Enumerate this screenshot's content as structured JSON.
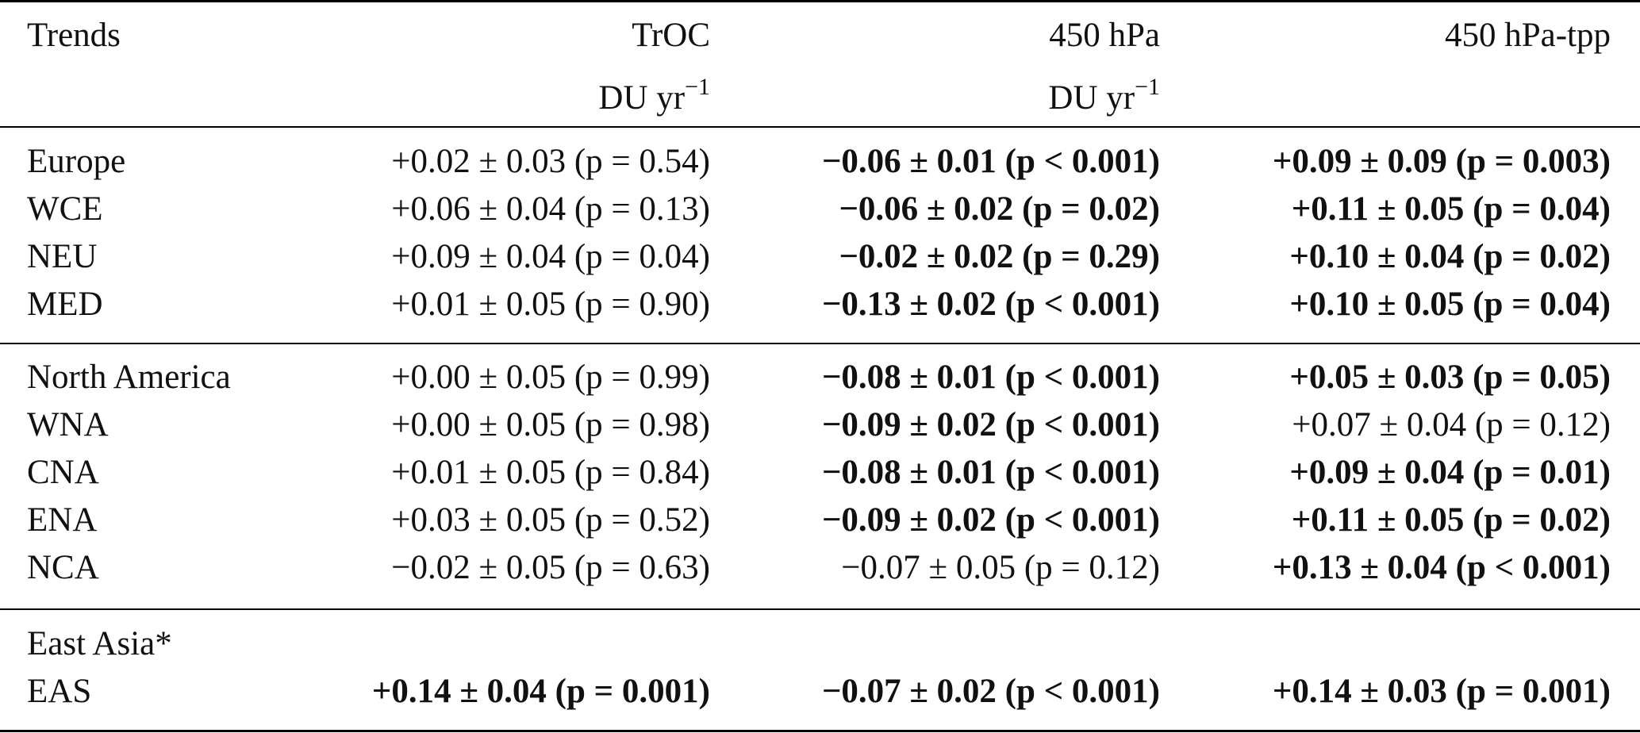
{
  "table": {
    "headers": {
      "col0": "Trends",
      "col1": {
        "title": "TrOC",
        "unit_base": "DU yr",
        "unit_exp": "−1"
      },
      "col2": {
        "title": "450 hPa",
        "unit_base": "DU yr",
        "unit_exp": "−1"
      },
      "col3": {
        "title": "450 hPa-tpp"
      }
    },
    "rows": [
      {
        "label": "Europe",
        "c1": "+0.02 ± 0.03 (p = 0.54)",
        "c2": "−0.06 ± 0.01 (p < 0.001)",
        "c3": "+0.09 ± 0.09 (p = 0.003)"
      },
      {
        "label": "WCE",
        "c1": "+0.06 ± 0.04 (p = 0.13)",
        "c2": "−0.06 ± 0.02 (p = 0.02)",
        "c3": "+0.11 ± 0.05 (p = 0.04)"
      },
      {
        "label": "NEU",
        "c1": "+0.09 ± 0.04 (p = 0.04)",
        "c2": "−0.02 ± 0.02 (p = 0.29)",
        "c3": "+0.10 ± 0.04 (p = 0.02)"
      },
      {
        "label": "MED",
        "c1": "+0.01 ± 0.05 (p = 0.90)",
        "c2": "−0.13 ± 0.02 (p < 0.001)",
        "c3": "+0.10 ± 0.05 (p = 0.04)"
      },
      {
        "label": "North America",
        "c1": "+0.00 ± 0.05 (p = 0.99)",
        "c2": "−0.08 ± 0.01 (p < 0.001)",
        "c3": "+0.05 ± 0.03 (p = 0.05)"
      },
      {
        "label": "WNA",
        "c1": "+0.00 ± 0.05 (p = 0.98)",
        "c2": "−0.09 ± 0.02 (p < 0.001)",
        "c3": "+0.07 ± 0.04 (p = 0.12)"
      },
      {
        "label": "CNA",
        "c1": "+0.01 ± 0.05 (p = 0.84)",
        "c2": "−0.08 ± 0.01 (p < 0.001)",
        "c3": "+0.09 ± 0.04 (p = 0.01)"
      },
      {
        "label": "ENA",
        "c1": "+0.03 ± 0.05 (p = 0.52)",
        "c2": "−0.09 ± 0.02 (p < 0.001)",
        "c3": "+0.11 ± 0.05 (p = 0.02)"
      },
      {
        "label": "NCA",
        "c1": "−0.02 ± 0.05 (p = 0.63)",
        "c2": "−0.07 ± 0.05 (p = 0.12)",
        "c3": "+0.13 ± 0.04 (p < 0.001)"
      },
      {
        "label": "East Asia*",
        "c1": "",
        "c2": "",
        "c3": ""
      },
      {
        "label": "EAS",
        "c1": "+0.14 ± 0.04 (p = 0.001)",
        "c2": "−0.07 ± 0.02 (p < 0.001)",
        "c3": "+0.14 ± 0.03 (p = 0.001)"
      }
    ]
  }
}
